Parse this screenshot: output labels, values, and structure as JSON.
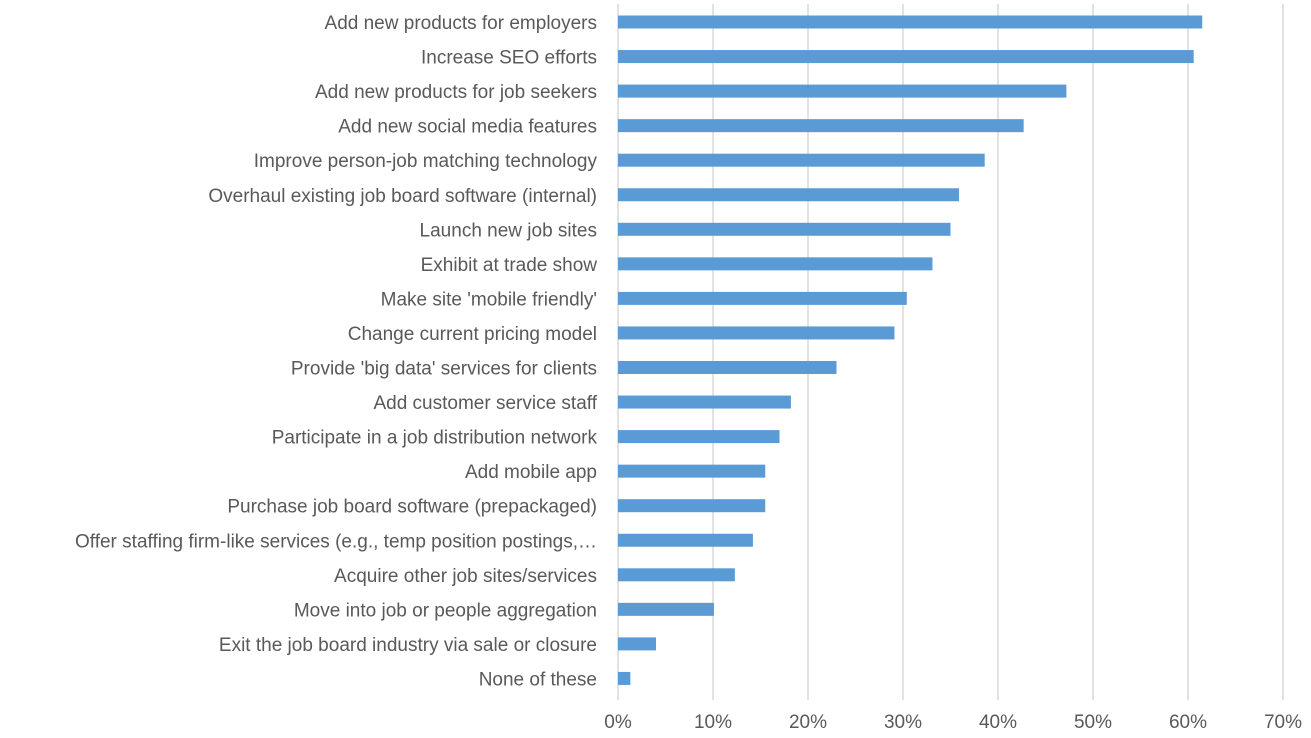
{
  "colors": {
    "bar": "#5b9bd5",
    "grid": "#d9d9d9",
    "text": "#595959",
    "background": "#ffffff"
  },
  "chart_data": {
    "type": "bar",
    "orientation": "horizontal",
    "title": "",
    "xlabel": "",
    "ylabel": "",
    "grid": true,
    "legend": "none",
    "xlim": [
      0,
      0.7
    ],
    "x_tick_values": [
      0,
      0.1,
      0.2,
      0.3,
      0.4,
      0.5,
      0.6,
      0.7
    ],
    "x_tick_labels": [
      "0%",
      "10%",
      "20%",
      "30%",
      "40%",
      "50%",
      "60%",
      "70%"
    ],
    "categories": [
      "Add new products for employers",
      "Increase SEO efforts",
      "Add new products for job seekers",
      "Add new social media features",
      "Improve person-job matching technology",
      "Overhaul existing job board software (internal)",
      "Launch new job sites",
      "Exhibit at trade show",
      "Make site 'mobile friendly'",
      "Change current pricing model",
      "Provide 'big data' services for clients",
      "Add customer service staff",
      "Participate in a job distribution network",
      "Add mobile app",
      "Purchase job board software (prepackaged)",
      "Offer staffing firm-like services (e.g., temp position postings,…",
      "Acquire other job sites/services",
      "Move into job or people aggregation",
      "Exit the job board industry via sale or closure",
      "None of these"
    ],
    "values": [
      0.615,
      0.606,
      0.472,
      0.427,
      0.386,
      0.359,
      0.35,
      0.331,
      0.304,
      0.291,
      0.23,
      0.182,
      0.17,
      0.155,
      0.155,
      0.142,
      0.123,
      0.101,
      0.04,
      0.013
    ]
  }
}
